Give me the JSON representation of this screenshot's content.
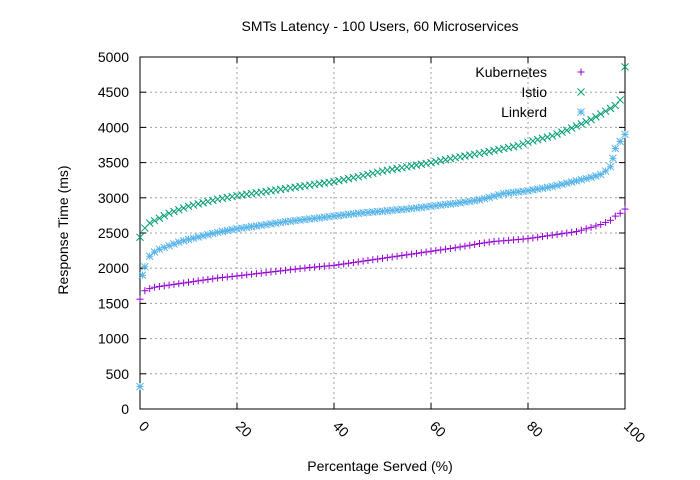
{
  "chart_data": {
    "type": "scatter",
    "title": "SMTs Latency - 100 Users, 60 Microservices",
    "xlabel": "Percentage Served (%)",
    "ylabel": "Response Time (ms)",
    "xlim": [
      0,
      100
    ],
    "ylim": [
      0,
      5000
    ],
    "xticks": [
      0,
      20,
      40,
      60,
      80,
      100
    ],
    "yticks": [
      0,
      500,
      1000,
      1500,
      2000,
      2500,
      3000,
      3500,
      4000,
      4500,
      5000
    ],
    "grid": true,
    "legend_position": "top-right",
    "series": [
      {
        "name": "Kubernetes",
        "color": "#9400d3",
        "marker": "plus",
        "points": [
          [
            0,
            1560
          ],
          [
            1,
            1680
          ],
          [
            2,
            1710
          ],
          [
            3,
            1730
          ],
          [
            5,
            1750
          ],
          [
            8,
            1780
          ],
          [
            12,
            1820
          ],
          [
            16,
            1860
          ],
          [
            20,
            1890
          ],
          [
            25,
            1930
          ],
          [
            30,
            1970
          ],
          [
            35,
            2010
          ],
          [
            40,
            2040
          ],
          [
            45,
            2090
          ],
          [
            50,
            2140
          ],
          [
            55,
            2190
          ],
          [
            60,
            2240
          ],
          [
            65,
            2290
          ],
          [
            70,
            2350
          ],
          [
            73,
            2380
          ],
          [
            75,
            2390
          ],
          [
            80,
            2420
          ],
          [
            85,
            2470
          ],
          [
            90,
            2520
          ],
          [
            93,
            2580
          ],
          [
            95,
            2620
          ],
          [
            97,
            2680
          ],
          [
            98,
            2740
          ],
          [
            99,
            2780
          ],
          [
            100,
            2840
          ]
        ]
      },
      {
        "name": "Istio",
        "color": "#009e73",
        "marker": "cross",
        "points": [
          [
            0,
            2440
          ],
          [
            1,
            2570
          ],
          [
            2,
            2640
          ],
          [
            4,
            2710
          ],
          [
            6,
            2780
          ],
          [
            8,
            2830
          ],
          [
            10,
            2880
          ],
          [
            13,
            2930
          ],
          [
            16,
            2980
          ],
          [
            20,
            3030
          ],
          [
            25,
            3080
          ],
          [
            30,
            3130
          ],
          [
            35,
            3180
          ],
          [
            40,
            3230
          ],
          [
            45,
            3300
          ],
          [
            50,
            3380
          ],
          [
            55,
            3440
          ],
          [
            60,
            3500
          ],
          [
            65,
            3570
          ],
          [
            70,
            3630
          ],
          [
            75,
            3700
          ],
          [
            78,
            3740
          ],
          [
            80,
            3790
          ],
          [
            85,
            3880
          ],
          [
            88,
            3960
          ],
          [
            90,
            4020
          ],
          [
            93,
            4110
          ],
          [
            95,
            4190
          ],
          [
            97,
            4270
          ],
          [
            98,
            4310
          ],
          [
            99,
            4390
          ],
          [
            100,
            4860
          ]
        ]
      },
      {
        "name": "Linkerd",
        "color": "#56b4e9",
        "marker": "star",
        "points": [
          [
            0,
            320
          ],
          [
            0.5,
            1900
          ],
          [
            1,
            2020
          ],
          [
            2,
            2170
          ],
          [
            3,
            2230
          ],
          [
            4,
            2270
          ],
          [
            6,
            2320
          ],
          [
            8,
            2370
          ],
          [
            10,
            2410
          ],
          [
            13,
            2460
          ],
          [
            16,
            2510
          ],
          [
            20,
            2560
          ],
          [
            25,
            2610
          ],
          [
            30,
            2660
          ],
          [
            35,
            2700
          ],
          [
            40,
            2740
          ],
          [
            45,
            2780
          ],
          [
            50,
            2810
          ],
          [
            55,
            2840
          ],
          [
            60,
            2880
          ],
          [
            65,
            2920
          ],
          [
            70,
            2970
          ],
          [
            75,
            3060
          ],
          [
            80,
            3100
          ],
          [
            85,
            3160
          ],
          [
            90,
            3240
          ],
          [
            93,
            3290
          ],
          [
            95,
            3330
          ],
          [
            96,
            3380
          ],
          [
            97,
            3440
          ],
          [
            97.5,
            3560
          ],
          [
            98,
            3700
          ],
          [
            100,
            3900
          ]
        ]
      }
    ]
  }
}
